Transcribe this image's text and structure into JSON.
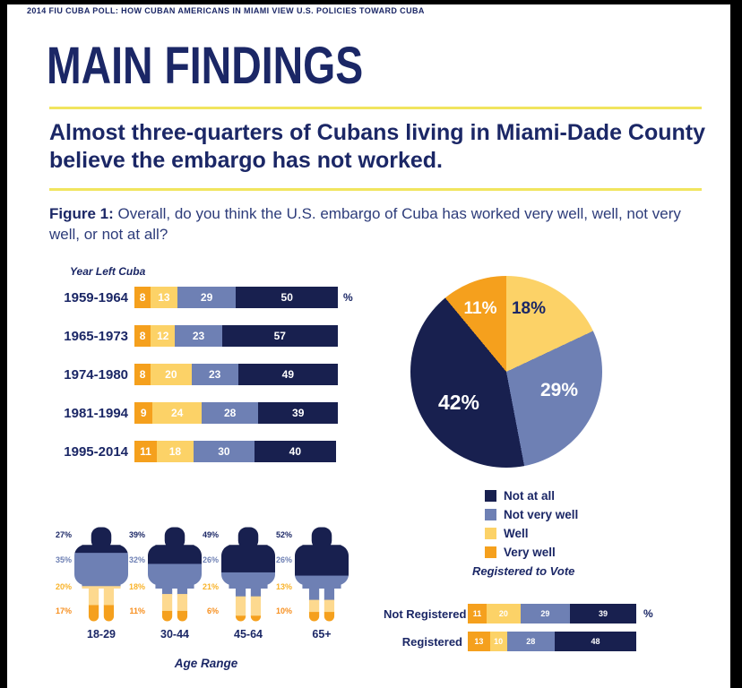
{
  "banner": "2014 FIU CUBA POLL: HOW CUBAN AMERICANS IN MIAMI VIEW U.S. POLICIES TOWARD CUBA",
  "title": "MAIN FINDINGS",
  "headline": "Almost three-quarters of Cubans living in Miami-Dade County believe the embargo has not worked.",
  "figure": {
    "label": "Figure 1:",
    "caption": " Overall, do you think the U.S. embargo of Cuba has worked very well, well, not very well, or not at all?"
  },
  "colors": {
    "navy": "#18204f",
    "slate": "#6e80b4",
    "yellow": "#fcd267",
    "light_yellow": "#fdd98f",
    "orange": "#f5a01d",
    "text_navy": "#1b2766",
    "label_yellow": "#f9b32a",
    "label_orange": "#f78f1e",
    "rule_yellow": "#f1e55f"
  },
  "legend": [
    {
      "label": "Not at all",
      "color": "navy"
    },
    {
      "label": "Not very well",
      "color": "slate"
    },
    {
      "label": "Well",
      "color": "yellow"
    },
    {
      "label": "Very well",
      "color": "orange"
    }
  ],
  "chart_data": [
    {
      "type": "bar",
      "name": "year_left_cuba",
      "title": "Year Left Cuba",
      "orientation": "horizontal",
      "stacked": true,
      "value_unit": "%",
      "categories": [
        "1959-1964",
        "1965-1973",
        "1974-1980",
        "1981-1994",
        "1995-2014"
      ],
      "series": [
        {
          "name": "Very well",
          "color": "orange",
          "values": [
            8,
            8,
            8,
            9,
            11
          ]
        },
        {
          "name": "Well",
          "color": "yellow",
          "values": [
            13,
            12,
            20,
            24,
            18
          ]
        },
        {
          "name": "Not very well",
          "color": "slate",
          "values": [
            29,
            23,
            23,
            28,
            30
          ]
        },
        {
          "name": "Not at all",
          "color": "navy",
          "values": [
            50,
            57,
            49,
            39,
            40
          ]
        }
      ]
    },
    {
      "type": "pie",
      "name": "overall_opinion",
      "start": "top",
      "direction": "clockwise",
      "slices": [
        {
          "label": "Well",
          "pct": 18,
          "color": "yellow",
          "label_text": "18%"
        },
        {
          "label": "Not very well",
          "pct": 29,
          "color": "slate",
          "label_text": "29%"
        },
        {
          "label": "Not at all",
          "pct": 42,
          "color": "navy",
          "label_text": "42%"
        },
        {
          "label": "Very well",
          "pct": 11,
          "color": "orange",
          "label_text": "11%"
        }
      ]
    },
    {
      "type": "pictogram",
      "name": "age_range",
      "title": "Age Range",
      "categories": [
        "18-29",
        "30-44",
        "45-64",
        "65+"
      ],
      "series": [
        {
          "name": "Not at all",
          "color": "navy",
          "label_color": "text_navy",
          "values": [
            27,
            39,
            49,
            52
          ]
        },
        {
          "name": "Not very well",
          "color": "slate",
          "label_color": "slate",
          "values": [
            35,
            32,
            26,
            26
          ]
        },
        {
          "name": "Well",
          "color": "light_yellow",
          "label_color": "label_yellow",
          "values": [
            20,
            18,
            21,
            13
          ]
        },
        {
          "name": "Very well",
          "color": "orange",
          "label_color": "label_orange",
          "values": [
            17,
            11,
            6,
            10
          ]
        }
      ]
    },
    {
      "type": "bar",
      "name": "registered_to_vote",
      "title": "Registered to Vote",
      "orientation": "horizontal",
      "stacked": true,
      "value_unit": "%",
      "categories": [
        "Not Registered",
        "Registered"
      ],
      "series": [
        {
          "name": "Very well",
          "color": "orange",
          "values": [
            11,
            13
          ]
        },
        {
          "name": "Well",
          "color": "yellow",
          "values": [
            20,
            10
          ]
        },
        {
          "name": "Not very well",
          "color": "slate",
          "values": [
            29,
            28
          ]
        },
        {
          "name": "Not at all",
          "color": "navy",
          "values": [
            39,
            48
          ]
        }
      ]
    }
  ]
}
